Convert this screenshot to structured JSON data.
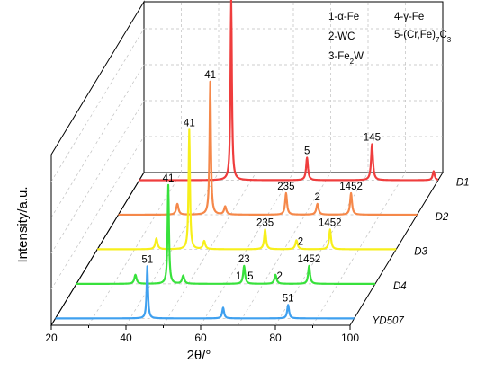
{
  "chart_data": {
    "type": "line",
    "xlabel": "2θ/°",
    "ylabel": "Intensity/a.u.",
    "x_ticks": [
      "20",
      "40",
      "60",
      "80",
      "100"
    ],
    "xlim": [
      20,
      100
    ],
    "legend": {
      "col1": [
        {
          "n": "1",
          "name": "α-Fe"
        },
        {
          "n": "2",
          "name": "WC"
        },
        {
          "n": "3",
          "name": "Fe",
          "sub": "2",
          "after": "W"
        }
      ],
      "col2": [
        {
          "n": "4",
          "name": "γ-Fe"
        },
        {
          "n": "5",
          "name": "(Cr,Fe)",
          "sub": "7",
          "after": "C",
          "sub2": "3"
        }
      ]
    },
    "series": [
      {
        "name": "YD507",
        "color": "#3fa0ef",
        "peaks": [
          {
            "x": 44.6,
            "h": 58,
            "w": 0.22
          },
          {
            "x": 64.9,
            "h": 12,
            "w": 0.3
          },
          {
            "x": 82.3,
            "h": 15,
            "w": 0.3
          }
        ],
        "annotations": [
          {
            "x": 44.6,
            "label": "51"
          },
          {
            "x": 82.3,
            "label": "51"
          }
        ]
      },
      {
        "name": "D4",
        "color": "#38e13c",
        "peaks": [
          {
            "x": 35.8,
            "h": 10,
            "w": 0.35
          },
          {
            "x": 44.6,
            "h": 110,
            "w": 0.22
          },
          {
            "x": 48.6,
            "h": 9,
            "w": 0.35
          },
          {
            "x": 64.9,
            "h": 20,
            "w": 0.3
          },
          {
            "x": 73.3,
            "h": 10,
            "w": 0.35
          },
          {
            "x": 82.3,
            "h": 20,
            "w": 0.3
          }
        ],
        "annotations": [
          {
            "x": 44.6,
            "label": "41"
          },
          {
            "x": 63.4,
            "label": "1"
          },
          {
            "x": 64.9,
            "label": "23"
          },
          {
            "x": 66.6,
            "label": "5"
          },
          {
            "x": 74.4,
            "label": "2"
          },
          {
            "x": 82.3,
            "label": "1452"
          }
        ]
      },
      {
        "name": "D3",
        "color": "#f7ef1b",
        "peaks": [
          {
            "x": 35.8,
            "h": 12,
            "w": 0.35
          },
          {
            "x": 44.6,
            "h": 133,
            "w": 0.22
          },
          {
            "x": 48.6,
            "h": 9,
            "w": 0.35
          },
          {
            "x": 64.9,
            "h": 22,
            "w": 0.3
          },
          {
            "x": 73.3,
            "h": 10,
            "w": 0.35
          },
          {
            "x": 82.3,
            "h": 22,
            "w": 0.3
          }
        ],
        "annotations": [
          {
            "x": 44.6,
            "label": "41"
          },
          {
            "x": 64.9,
            "label": "235"
          },
          {
            "x": 74.4,
            "label": "2"
          },
          {
            "x": 82.3,
            "label": "1452"
          }
        ]
      },
      {
        "name": "D2",
        "color": "#f5884a",
        "peaks": [
          {
            "x": 35.8,
            "h": 12,
            "w": 0.35
          },
          {
            "x": 44.6,
            "h": 148,
            "w": 0.22
          },
          {
            "x": 48.6,
            "h": 9,
            "w": 0.35
          },
          {
            "x": 64.9,
            "h": 24,
            "w": 0.3
          },
          {
            "x": 73.3,
            "h": 12,
            "w": 0.35
          },
          {
            "x": 82.3,
            "h": 24,
            "w": 0.3
          }
        ],
        "annotations": [
          {
            "x": 44.6,
            "label": "41"
          },
          {
            "x": 64.9,
            "label": "235"
          },
          {
            "x": 73.3,
            "label": "2"
          },
          {
            "x": 82.3,
            "label": "1452"
          }
        ]
      },
      {
        "name": "D1",
        "color": "#ef3d3d",
        "peaks": [
          {
            "x": 44.6,
            "h": 200,
            "w": 0.22
          },
          {
            "x": 64.9,
            "h": 25,
            "w": 0.3
          },
          {
            "x": 82.3,
            "h": 40,
            "w": 0.3
          },
          {
            "x": 98.8,
            "h": 10,
            "w": 0.3
          }
        ],
        "annotations": [
          {
            "x": 44.6,
            "label": "41"
          },
          {
            "x": 64.9,
            "label": "5"
          },
          {
            "x": 82.3,
            "label": "145"
          }
        ]
      }
    ]
  }
}
